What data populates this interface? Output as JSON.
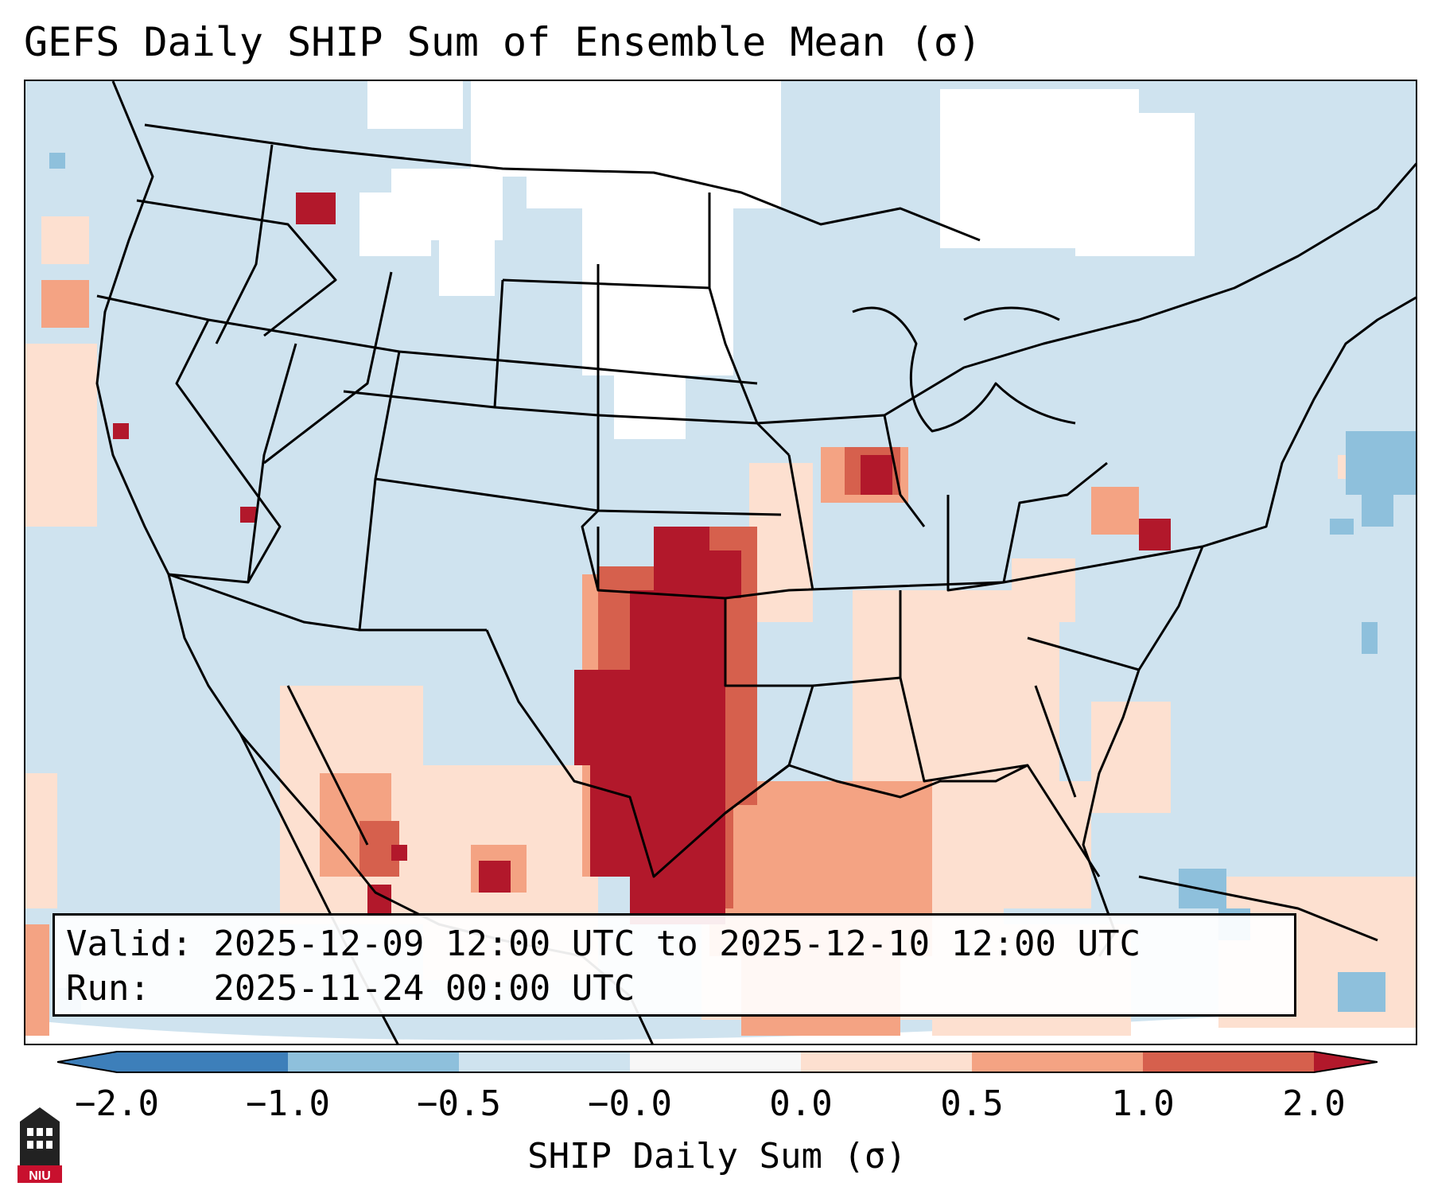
{
  "title": "GEFS Daily SHIP Sum of Ensemble Mean (σ)",
  "info": {
    "valid_line": "Valid: 2025-12-09 12:00 UTC to 2025-12-10 12:00 UTC",
    "run_line": "Run:   2025-11-24 00:00 UTC"
  },
  "colorbar": {
    "label": "SHIP Daily Sum (σ)",
    "ticks": [
      "−2.0",
      "−1.0",
      "−0.5",
      "−0.0",
      "0.0",
      "0.5",
      "1.0",
      "2.0"
    ],
    "colors": [
      "#3d7fba",
      "#8ec0dc",
      "#cfe3ef",
      "#f7f7f7",
      "#fde0d0",
      "#f4a383",
      "#d6604d",
      "#b2182b"
    ]
  },
  "map": {
    "ocean_color": "#cfe3ef",
    "land_neutral_color": "#ffffff",
    "projection": "Lambert Conformal Conic, CONUS",
    "hotspot_region": "Southern Plains / Texas"
  },
  "logo": {
    "text": "NIU"
  }
}
